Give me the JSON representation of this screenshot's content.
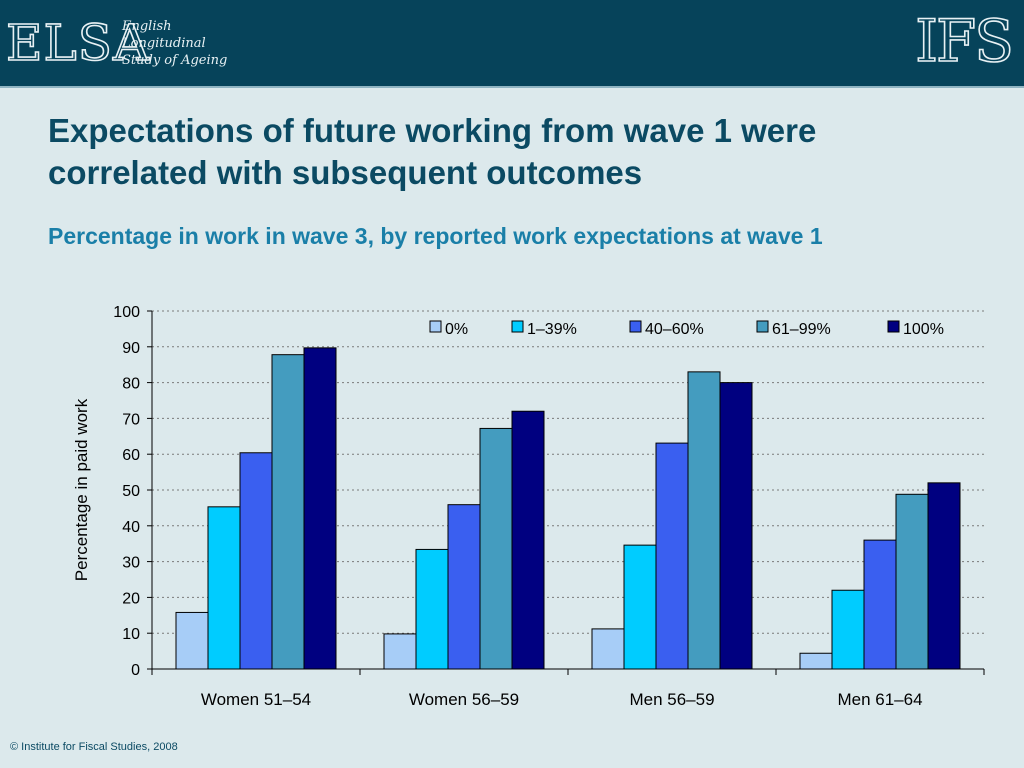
{
  "header": {
    "elsa_logo_text": "ELSA",
    "elsa_lines": [
      "English",
      "Longitudinal",
      "Study of Ageing"
    ],
    "ifs_logo_text": "IFS"
  },
  "title": "Expectations of future working from wave 1 were correlated with subsequent outcomes",
  "subtitle": "Percentage in work in wave 3, by reported work expectations at wave 1",
  "footer": "© Institute for Fiscal Studies, 2008",
  "chart_data": {
    "type": "bar",
    "ylabel": "Percentage in paid work",
    "xlabel": "",
    "ylim": [
      0,
      100
    ],
    "yticks": [
      0,
      10,
      20,
      30,
      40,
      50,
      60,
      70,
      80,
      90,
      100
    ],
    "grid": true,
    "legend_position": "top-right",
    "categories": [
      "Women 51–54",
      "Women 56–59",
      "Men 56–59",
      "Men 61–64"
    ],
    "series": [
      {
        "name": "0%",
        "color": "#a7cdf7",
        "values": [
          15.8,
          9.8,
          11.2,
          4.4
        ]
      },
      {
        "name": "1–39%",
        "color": "#00ccff",
        "values": [
          45.3,
          33.4,
          34.6,
          22.0
        ]
      },
      {
        "name": "40–60%",
        "color": "#3a5ff0",
        "values": [
          60.4,
          45.9,
          63.1,
          36.0
        ]
      },
      {
        "name": "61–99%",
        "color": "#449cbf",
        "values": [
          87.8,
          67.2,
          83.0,
          48.8
        ]
      },
      {
        "name": "100%",
        "color": "#000080",
        "values": [
          89.7,
          72.0,
          80.0,
          52.0
        ]
      }
    ]
  }
}
